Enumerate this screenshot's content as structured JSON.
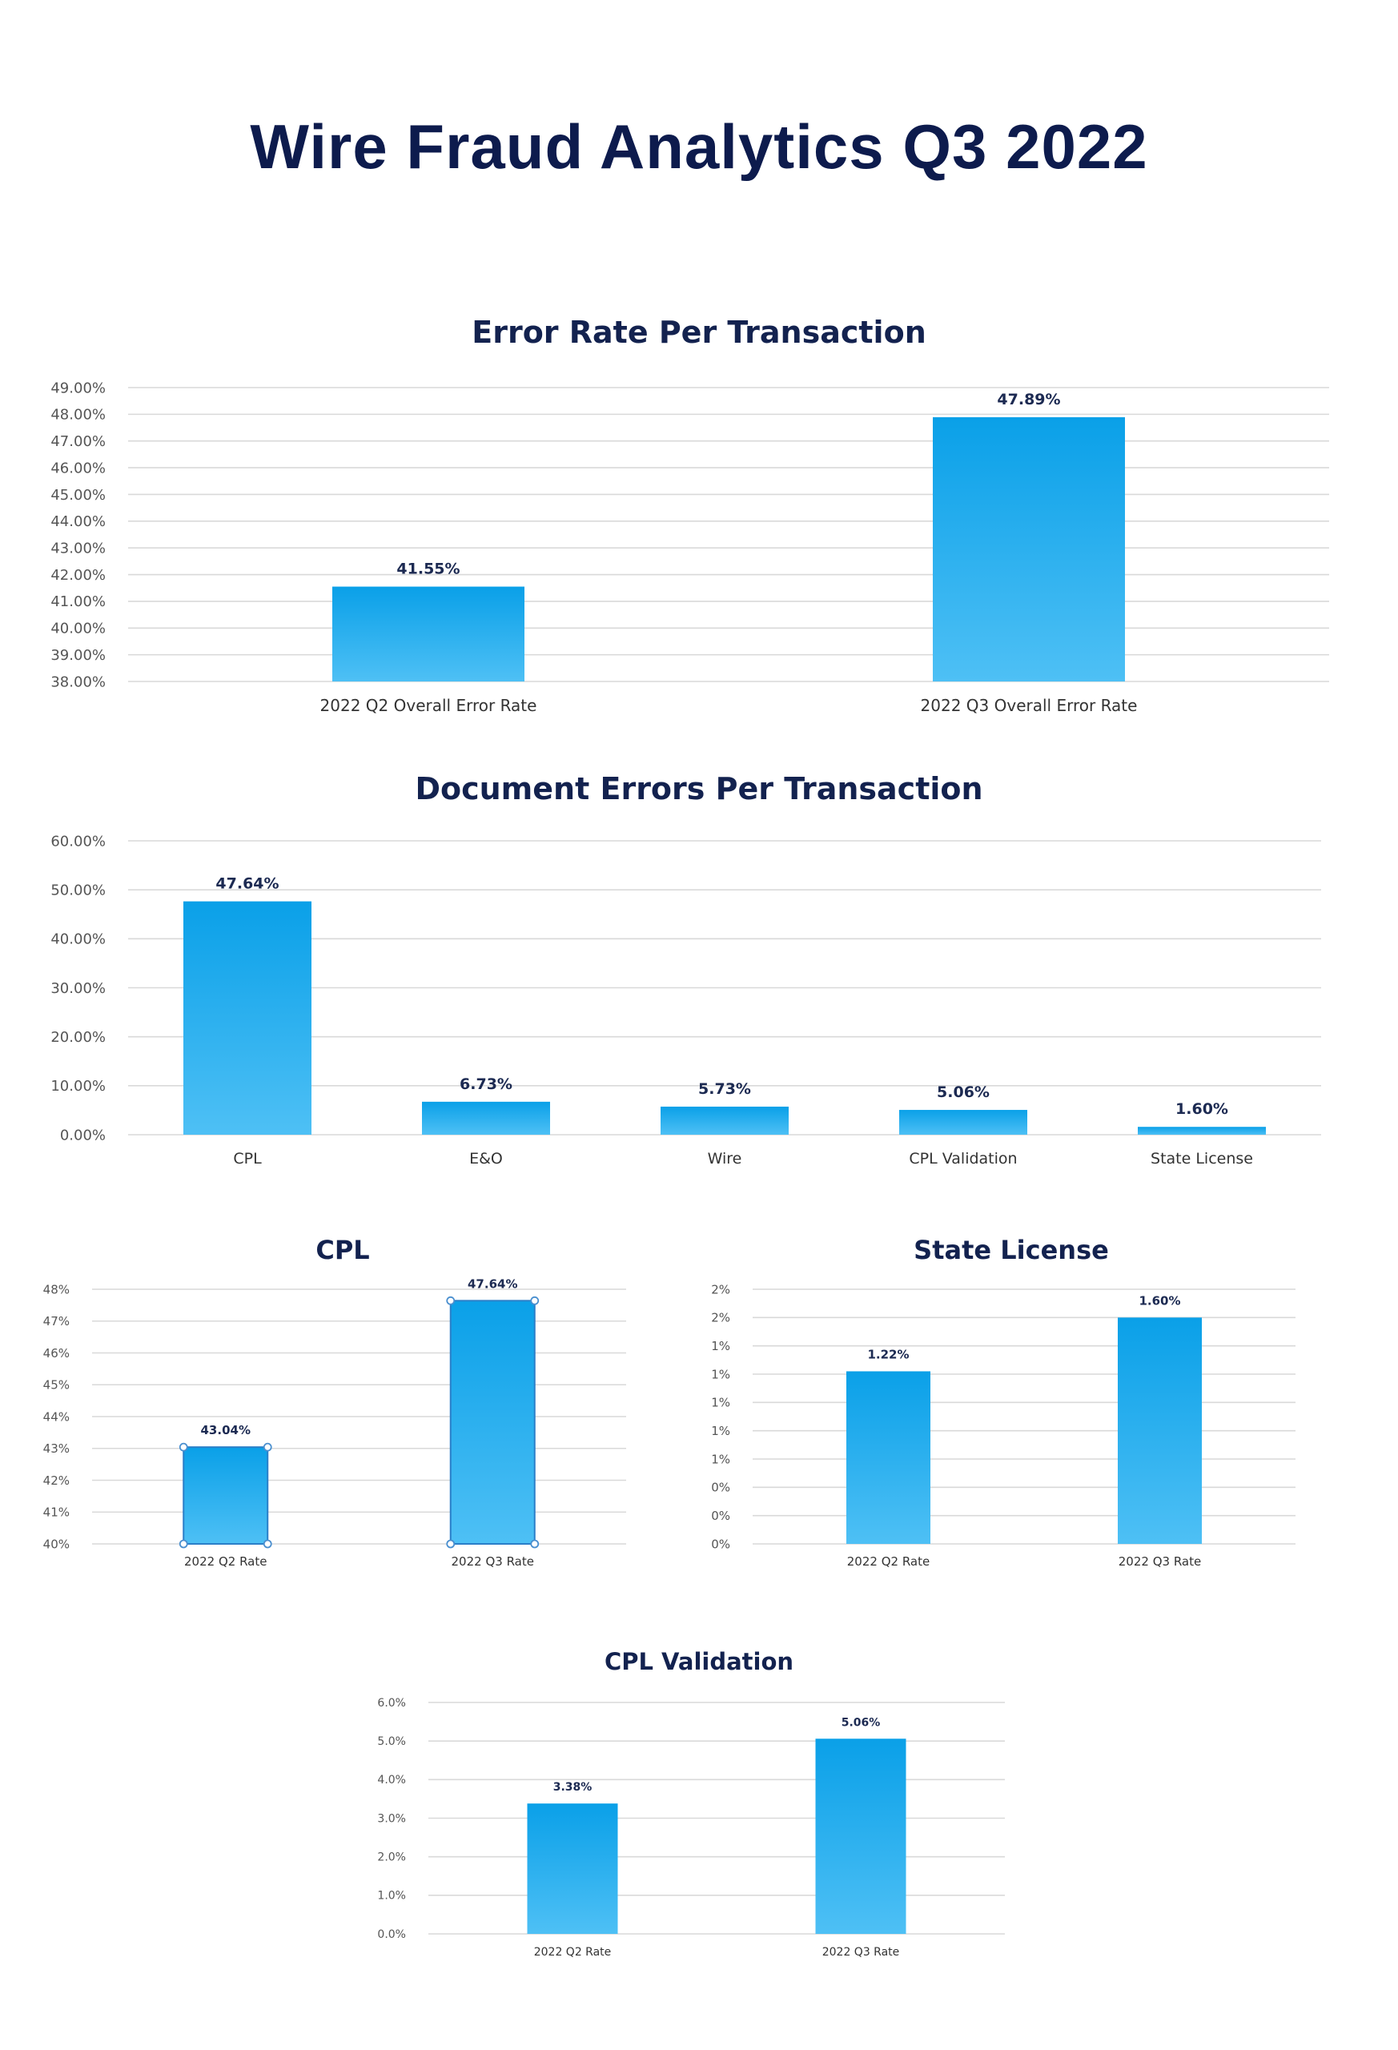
{
  "page": {
    "title": "Wire Fraud Analytics Q3 2022"
  },
  "colors": {
    "title": "#0d1b4d",
    "bar_top": "#0aa0e8",
    "bar_bottom": "#4ec0f5",
    "grid": "#d9d9d9"
  },
  "chart_data": [
    {
      "id": "error-rate",
      "type": "bar",
      "title": "Error Rate Per Transaction",
      "categories": [
        "2022 Q2 Overall Error Rate",
        "2022 Q3 Overall Error Rate"
      ],
      "values": [
        41.55,
        47.89
      ],
      "value_labels": [
        "41.55%",
        "47.89%"
      ],
      "ylim": [
        38,
        49
      ],
      "yticks": [
        "38.00%",
        "39.00%",
        "40.00%",
        "41.00%",
        "42.00%",
        "43.00%",
        "44.00%",
        "45.00%",
        "46.00%",
        "47.00%",
        "48.00%",
        "49.00%"
      ],
      "grid": true
    },
    {
      "id": "document-errors",
      "type": "bar",
      "title": "Document Errors Per Transaction",
      "categories": [
        "CPL",
        "E&O",
        "Wire",
        "CPL Validation",
        "State License"
      ],
      "values": [
        47.64,
        6.73,
        5.73,
        5.06,
        1.6
      ],
      "value_labels": [
        "47.64%",
        "6.73%",
        "5.73%",
        "5.06%",
        "1.60%"
      ],
      "ylim": [
        0,
        60
      ],
      "yticks": [
        "0.00%",
        "10.00%",
        "20.00%",
        "30.00%",
        "40.00%",
        "50.00%",
        "60.00%"
      ],
      "grid": true
    },
    {
      "id": "cpl",
      "type": "bar",
      "title": "CPL",
      "categories": [
        "2022 Q2 Rate",
        "2022 Q3 Rate"
      ],
      "values": [
        43.04,
        47.64
      ],
      "value_labels": [
        "43.04%",
        "47.64%"
      ],
      "ylim": [
        40,
        48
      ],
      "yticks": [
        "40%",
        "41%",
        "42%",
        "43%",
        "44%",
        "45%",
        "46%",
        "47%",
        "48%"
      ],
      "grid": true
    },
    {
      "id": "state-license",
      "type": "bar",
      "title": "State License",
      "categories": [
        "2022 Q2 Rate",
        "2022 Q3 Rate"
      ],
      "values": [
        1.22,
        1.6
      ],
      "value_labels": [
        "1.22%",
        "1.60%"
      ],
      "ylim": [
        0,
        1.8
      ],
      "yticks": [
        "0%",
        "0%",
        "0%",
        "1%",
        "1%",
        "1%",
        "1%",
        "1%",
        "2%",
        "2%"
      ],
      "grid": true
    },
    {
      "id": "cpl-validation",
      "type": "bar",
      "title": "CPL Validation",
      "categories": [
        "2022 Q2 Rate",
        "2022 Q3 Rate"
      ],
      "values": [
        3.38,
        5.06
      ],
      "value_labels": [
        "3.38%",
        "5.06%"
      ],
      "ylim": [
        0,
        6
      ],
      "yticks": [
        "0.0%",
        "1.0%",
        "2.0%",
        "3.0%",
        "4.0%",
        "5.0%",
        "6.0%"
      ],
      "grid": true
    }
  ]
}
